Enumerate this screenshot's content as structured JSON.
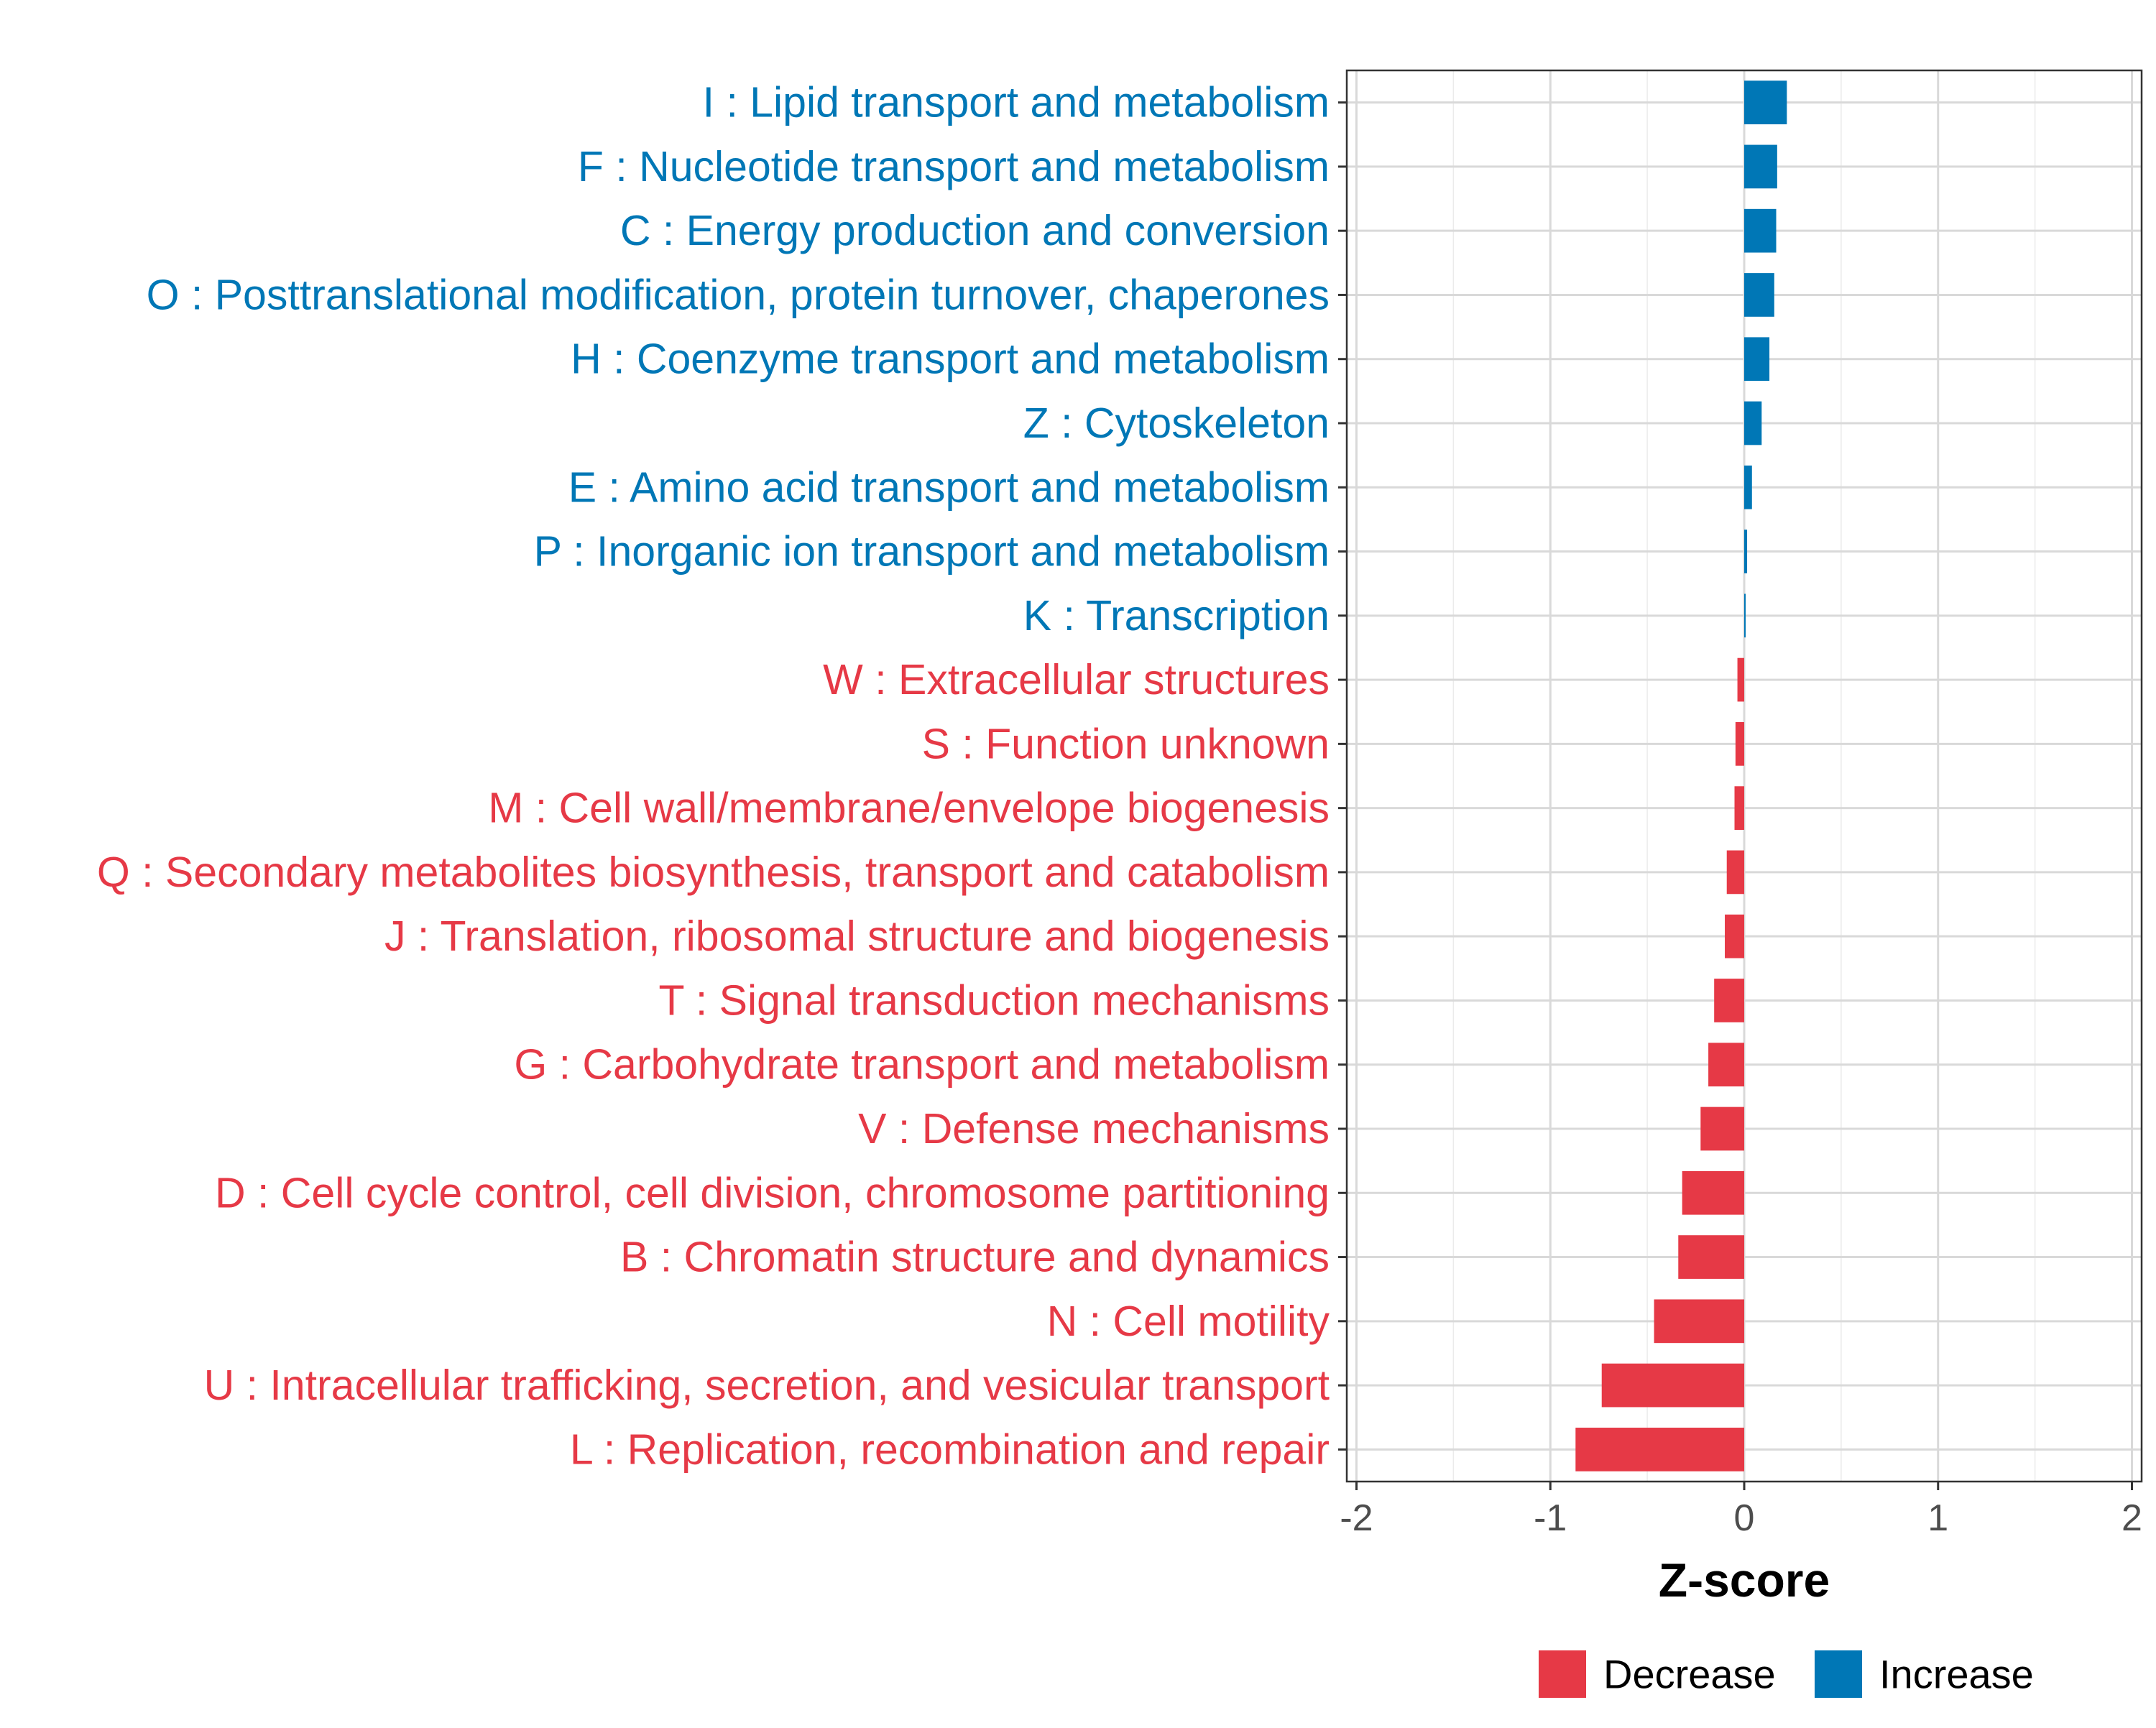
{
  "chart_data": {
    "type": "bar",
    "orientation": "horizontal",
    "xlabel": "Z-score",
    "ylabel": "",
    "xlim": [
      -2.05,
      2.05
    ],
    "xticks": [
      -2,
      -1,
      0,
      1,
      2
    ],
    "xtick_labels": [
      "-2",
      "-1",
      "0",
      "1",
      "2"
    ],
    "grid": true,
    "legend_position": "bottom",
    "legend": [
      {
        "name": "Decrease",
        "color": "#E63946"
      },
      {
        "name": "Increase",
        "color": "#0077B6"
      }
    ],
    "categories": [
      "I : Lipid transport and metabolism",
      "F : Nucleotide transport and metabolism",
      "C : Energy production and conversion",
      "O : Posttranslational modification, protein turnover, chaperones",
      "H : Coenzyme transport and metabolism",
      "Z : Cytoskeleton",
      "E : Amino acid transport and metabolism",
      "P : Inorganic ion transport and metabolism",
      "K : Transcription",
      "W : Extracellular structures",
      "S : Function unknown",
      "M : Cell wall/membrane/envelope biogenesis",
      "Q : Secondary metabolites biosynthesis, transport and catabolism",
      "J : Translation, ribosomal structure and biogenesis",
      "T : Signal transduction mechanisms",
      "G : Carbohydrate transport and metabolism",
      "V : Defense mechanisms",
      "D : Cell cycle control, cell division, chromosome partitioning",
      "B : Chromatin structure and dynamics",
      "N : Cell motility",
      "U : Intracellular trafficking, secretion, and vesicular transport",
      "L : Replication, recombination and repair"
    ],
    "values": [
      0.22,
      0.17,
      0.165,
      0.155,
      0.13,
      0.09,
      0.04,
      0.015,
      0.005,
      -0.035,
      -0.045,
      -0.05,
      -0.09,
      -0.1,
      -0.155,
      -0.185,
      -0.225,
      -0.32,
      -0.34,
      -0.465,
      -0.735,
      -0.87
    ],
    "groups": [
      "Increase",
      "Increase",
      "Increase",
      "Increase",
      "Increase",
      "Increase",
      "Increase",
      "Increase",
      "Increase",
      "Decrease",
      "Decrease",
      "Decrease",
      "Decrease",
      "Decrease",
      "Decrease",
      "Decrease",
      "Decrease",
      "Decrease",
      "Decrease",
      "Decrease",
      "Decrease",
      "Decrease"
    ]
  }
}
